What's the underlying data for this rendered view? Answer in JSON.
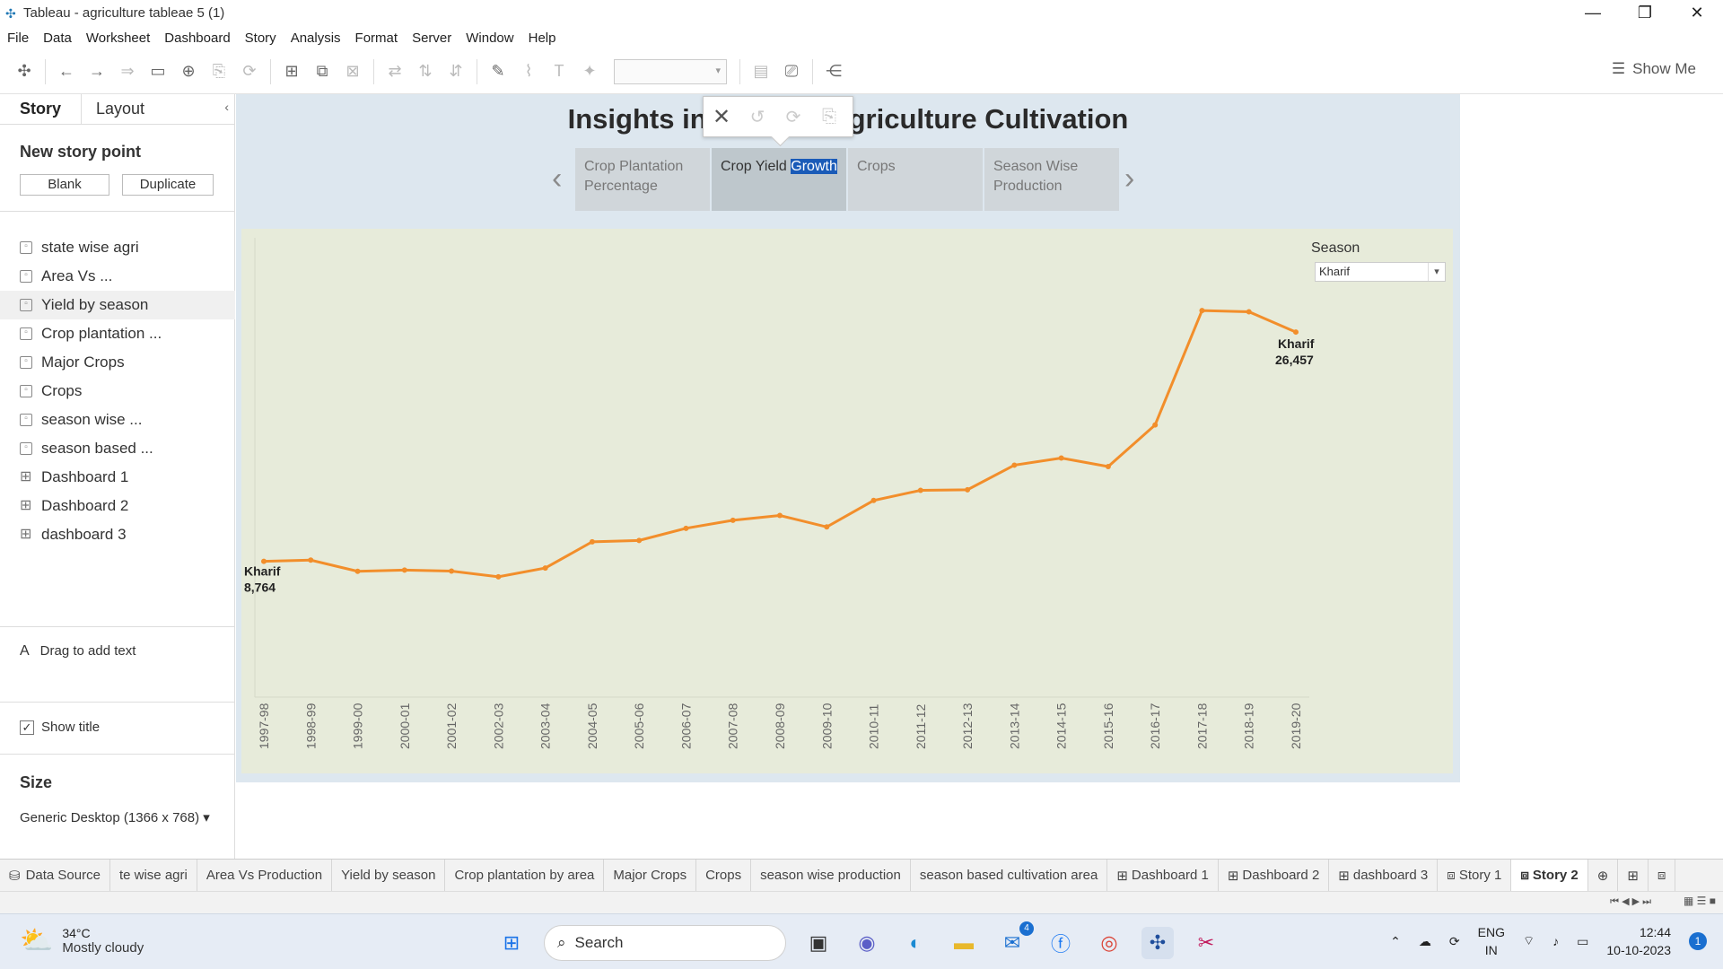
{
  "window": {
    "title": "Tableau - agriculture tableae 5 (1)"
  },
  "menu": [
    "File",
    "Data",
    "Worksheet",
    "Dashboard",
    "Story",
    "Analysis",
    "Format",
    "Server",
    "Window",
    "Help"
  ],
  "toolbar": {
    "show_me": "Show Me"
  },
  "left_pane": {
    "tab_story": "Story",
    "tab_layout": "Layout",
    "new_story_point": "New story point",
    "blank_button": "Blank",
    "duplicate_button": "Duplicate",
    "sheets": [
      {
        "label": "state wise agri",
        "kind": "sheet"
      },
      {
        "label": "Area Vs ...",
        "kind": "sheet"
      },
      {
        "label": "Yield by season",
        "kind": "sheet"
      },
      {
        "label": "Crop plantation ...",
        "kind": "sheet"
      },
      {
        "label": "Major Crops",
        "kind": "sheet"
      },
      {
        "label": "Crops",
        "kind": "sheet"
      },
      {
        "label": "season wise ...",
        "kind": "sheet"
      },
      {
        "label": "season based ...",
        "kind": "sheet"
      },
      {
        "label": "Dashboard 1",
        "kind": "dashboard"
      },
      {
        "label": "Dashboard 2",
        "kind": "dashboard"
      },
      {
        "label": "dashboard 3",
        "kind": "dashboard"
      }
    ],
    "drag_text": "Drag to add text",
    "show_title": "Show title",
    "size_label": "Size",
    "size_value": "Generic Desktop (1366 x 768)"
  },
  "story": {
    "title": "Insights in",
    "title_rest": "griculture Cultivation",
    "points": [
      {
        "line1": "Crop Plantation",
        "line2": "Percentage"
      },
      {
        "line1": "Crop Yield ",
        "line2": "Growth"
      },
      {
        "line1": "Crops",
        "line2": ""
      },
      {
        "line1": "Season Wise",
        "line2": "Production"
      }
    ]
  },
  "filter": {
    "label": "Season",
    "value": "Kharif"
  },
  "chart_data": {
    "type": "line",
    "categories": [
      "1997-98",
      "1998-99",
      "1999-00",
      "2000-01",
      "2001-02",
      "2002-03",
      "2003-04",
      "2004-05",
      "2005-06",
      "2006-07",
      "2007-08",
      "2008-09",
      "2009-10",
      "2010-11",
      "2011-12",
      "2012-13",
      "2013-14",
      "2014-15",
      "2015-16",
      "2016-17",
      "2017-18",
      "2018-19",
      "2019-20"
    ],
    "series": [
      {
        "name": "Kharif",
        "values": [
          8764,
          8857,
          7995,
          8093,
          8012,
          7571,
          8249,
          10270,
          10375,
          11312,
          11934,
          12305,
          11418,
          13463,
          14242,
          14288,
          16185,
          16733,
          16078,
          19289,
          28115,
          28021,
          26457
        ]
      }
    ],
    "color": "#f28e2b",
    "start_label": {
      "name": "Kharif",
      "value": "8,764"
    },
    "end_label": {
      "name": "Kharif",
      "value": "26,457"
    },
    "ylim": [
      5000,
      32000
    ]
  },
  "bottom_tabs": [
    "Data Source",
    "te wise agri",
    "Area Vs Production",
    "Yield by season",
    "Crop plantation by area",
    "Major Crops",
    "Crops",
    "season wise production",
    "season based cultivation area",
    "Dashboard 1",
    "Dashboard 2",
    "dashboard 3",
    "Story 1",
    "Story 2"
  ],
  "taskbar": {
    "temp": "34°C",
    "weather": "Mostly cloudy",
    "search": "Search",
    "mail_badge": "4",
    "lang1": "ENG",
    "lang2": "IN",
    "time": "12:44",
    "date": "10-10-2023",
    "notif": "1"
  }
}
